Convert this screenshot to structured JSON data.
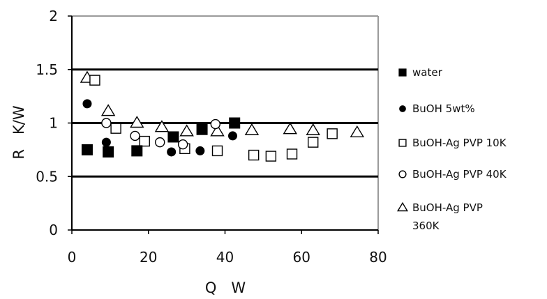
{
  "chart_data": {
    "type": "scatter",
    "xlabel": "Q　W",
    "ylabel": "R　K/W",
    "xlim": [
      0,
      80
    ],
    "ylim": [
      0,
      2
    ],
    "x_ticks": [
      "0",
      "20",
      "40",
      "60",
      "80"
    ],
    "y_ticks": [
      "0",
      "0.5",
      "1",
      "1.5",
      "2"
    ],
    "y_gridlines": [
      0.5,
      1,
      1.5
    ],
    "legend_position": "right",
    "series": [
      {
        "name": "water",
        "marker": "square-filled",
        "points": [
          [
            4,
            0.75
          ],
          [
            9.5,
            0.73
          ],
          [
            17,
            0.74
          ],
          [
            26.5,
            0.87
          ],
          [
            34,
            0.94
          ],
          [
            42.5,
            1.0
          ]
        ]
      },
      {
        "name": "BuOH 5wt%",
        "marker": "circle-filled",
        "points": [
          [
            4,
            1.18
          ],
          [
            9,
            0.82
          ],
          [
            26,
            0.73
          ],
          [
            33.5,
            0.74
          ],
          [
            42,
            0.88
          ]
        ]
      },
      {
        "name": "BuOH-Ag PVP 10K",
        "marker": "square-open",
        "points": [
          [
            6,
            1.4
          ],
          [
            11.5,
            0.95
          ],
          [
            19,
            0.83
          ],
          [
            29.5,
            0.76
          ],
          [
            38,
            0.74
          ],
          [
            47.5,
            0.7
          ],
          [
            52,
            0.69
          ],
          [
            57.5,
            0.71
          ],
          [
            63,
            0.82
          ],
          [
            68,
            0.9
          ]
        ]
      },
      {
        "name": "BuOH-Ag PVP 40K",
        "marker": "circle-open",
        "points": [
          [
            9,
            1.0
          ],
          [
            16.5,
            0.88
          ],
          [
            23,
            0.82
          ],
          [
            29,
            0.8
          ],
          [
            37.5,
            0.99
          ]
        ]
      },
      {
        "name": "BuOH-Ag  PVP\n360K",
        "legend_lines": [
          "BuOH-Ag  PVP",
          "360K"
        ],
        "marker": "triangle-open",
        "points": [
          [
            4,
            1.42
          ],
          [
            9.5,
            1.11
          ],
          [
            17,
            1.0
          ],
          [
            23.5,
            0.96
          ],
          [
            30,
            0.92
          ],
          [
            38,
            0.92
          ],
          [
            47,
            0.93
          ],
          [
            57,
            0.94
          ],
          [
            63,
            0.93
          ],
          [
            74.5,
            0.91
          ]
        ]
      }
    ]
  }
}
